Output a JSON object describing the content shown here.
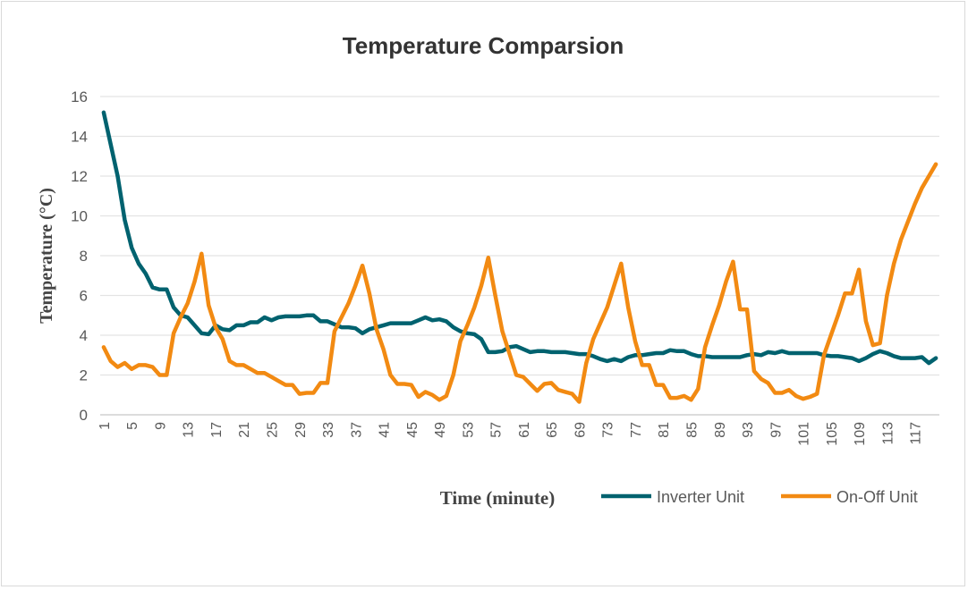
{
  "chart_data": {
    "type": "line",
    "title": "Temperature Comparsion",
    "xlabel": "Time (minute)",
    "ylabel": "Temperature (°C)",
    "ylim": [
      0,
      16
    ],
    "yticks": [
      0,
      2,
      4,
      6,
      8,
      10,
      12,
      14,
      16
    ],
    "x": [
      1,
      2,
      3,
      4,
      5,
      6,
      7,
      8,
      9,
      10,
      11,
      12,
      13,
      14,
      15,
      16,
      17,
      18,
      19,
      20,
      21,
      22,
      23,
      24,
      25,
      26,
      27,
      28,
      29,
      30,
      31,
      32,
      33,
      34,
      35,
      36,
      37,
      38,
      39,
      40,
      41,
      42,
      43,
      44,
      45,
      46,
      47,
      48,
      49,
      50,
      51,
      52,
      53,
      54,
      55,
      56,
      57,
      58,
      59,
      60,
      61,
      62,
      63,
      64,
      65,
      66,
      67,
      68,
      69,
      70,
      71,
      72,
      73,
      74,
      75,
      76,
      77,
      78,
      79,
      80,
      81,
      82,
      83,
      84,
      85,
      86,
      87,
      88,
      89,
      90,
      91,
      92,
      93,
      94,
      95,
      96,
      97,
      98,
      99,
      100,
      101,
      102,
      103,
      104,
      105,
      106,
      107,
      108,
      109,
      110,
      111,
      112,
      113,
      114,
      115,
      116,
      117,
      118,
      119,
      120
    ],
    "xtick_step": 4,
    "grid": true,
    "legend": "bottom",
    "series": [
      {
        "name": "Inverter Unit",
        "color": "#00626f",
        "values": [
          15.2,
          13.6,
          12.0,
          9.8,
          8.4,
          7.6,
          7.1,
          6.4,
          6.3,
          6.3,
          5.4,
          5.0,
          4.9,
          4.5,
          4.1,
          4.05,
          4.5,
          4.3,
          4.25,
          4.5,
          4.5,
          4.65,
          4.65,
          4.9,
          4.75,
          4.9,
          4.95,
          4.95,
          4.95,
          5.0,
          5.0,
          4.7,
          4.7,
          4.55,
          4.4,
          4.4,
          4.35,
          4.1,
          4.3,
          4.4,
          4.5,
          4.6,
          4.6,
          4.6,
          4.6,
          4.75,
          4.9,
          4.75,
          4.8,
          4.7,
          4.4,
          4.2,
          4.1,
          4.05,
          3.8,
          3.15,
          3.15,
          3.2,
          3.4,
          3.45,
          3.3,
          3.15,
          3.2,
          3.2,
          3.15,
          3.15,
          3.15,
          3.1,
          3.05,
          3.05,
          2.95,
          2.8,
          2.7,
          2.8,
          2.7,
          2.9,
          3.0,
          3.0,
          3.05,
          3.1,
          3.1,
          3.25,
          3.2,
          3.2,
          3.05,
          2.95,
          2.95,
          2.9,
          2.9,
          2.9,
          2.9,
          2.9,
          3.0,
          3.05,
          3.0,
          3.15,
          3.1,
          3.2,
          3.1,
          3.1,
          3.1,
          3.1,
          3.1,
          3.0,
          2.95,
          2.95,
          2.9,
          2.85,
          2.7,
          2.85,
          3.05,
          3.2,
          3.1,
          2.95,
          2.85,
          2.85,
          2.85,
          2.9,
          2.6,
          2.85
        ]
      },
      {
        "name": "On-Off Unit",
        "color": "#f28a12",
        "values": [
          3.4,
          2.7,
          2.4,
          2.6,
          2.3,
          2.5,
          2.5,
          2.4,
          2.0,
          2.0,
          4.1,
          4.9,
          5.6,
          6.7,
          8.1,
          5.5,
          4.4,
          3.8,
          2.7,
          2.5,
          2.5,
          2.3,
          2.1,
          2.1,
          1.9,
          1.7,
          1.5,
          1.5,
          1.05,
          1.1,
          1.1,
          1.6,
          1.6,
          4.2,
          4.9,
          5.6,
          6.5,
          7.5,
          6.1,
          4.3,
          3.3,
          2.0,
          1.55,
          1.55,
          1.5,
          0.9,
          1.15,
          1.0,
          0.75,
          0.95,
          2.0,
          3.7,
          4.5,
          5.4,
          6.5,
          7.9,
          6.0,
          4.2,
          3.1,
          2.0,
          1.9,
          1.55,
          1.2,
          1.55,
          1.6,
          1.25,
          1.15,
          1.05,
          0.65,
          2.6,
          3.8,
          4.6,
          5.4,
          6.5,
          7.6,
          5.4,
          3.7,
          2.5,
          2.5,
          1.5,
          1.5,
          0.85,
          0.85,
          0.95,
          0.75,
          1.3,
          3.4,
          4.5,
          5.5,
          6.7,
          7.7,
          5.3,
          5.3,
          2.2,
          1.8,
          1.6,
          1.1,
          1.1,
          1.25,
          0.95,
          0.8,
          0.9,
          1.05,
          3.0,
          4.0,
          5.0,
          6.1,
          6.1,
          7.3,
          4.7,
          3.5,
          3.6,
          6.0,
          7.6,
          8.8,
          9.7,
          10.6,
          11.4,
          12.0,
          12.6
        ]
      }
    ]
  }
}
